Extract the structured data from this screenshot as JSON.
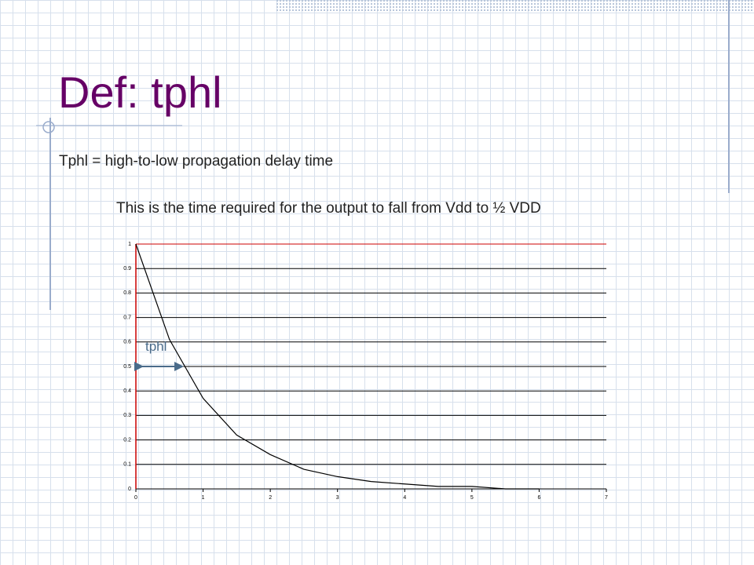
{
  "slide": {
    "title": "Def: tphl",
    "line1": "Tphl = high-to-low propagation delay time",
    "line2": "This is the time required for the output to fall from Vdd to ½ VDD"
  },
  "chart_data": {
    "type": "line",
    "x": [
      0,
      0.5,
      1,
      1.5,
      2,
      2.5,
      3,
      3.5,
      4,
      4.5,
      5,
      5.5,
      6
    ],
    "series": [
      {
        "color": "#000000",
        "values": [
          1,
          0.61,
          0.37,
          0.22,
          0.14,
          0.08,
          0.05,
          0.03,
          0.02,
          0.01,
          0.01,
          0,
          0
        ]
      }
    ],
    "xlim": [
      0,
      7
    ],
    "xticks": [
      0,
      1,
      2,
      3,
      4,
      5,
      6,
      7
    ],
    "ylim": [
      0,
      1
    ],
    "yticks": [
      0,
      0.1,
      0.2,
      0.3,
      0.4,
      0.5,
      0.6,
      0.7,
      0.8,
      0.9,
      1
    ],
    "grid": true,
    "annotation": {
      "text": "tphl",
      "x": [
        0,
        0.69
      ],
      "y": 0.5,
      "color": "#4a6b8a"
    }
  }
}
